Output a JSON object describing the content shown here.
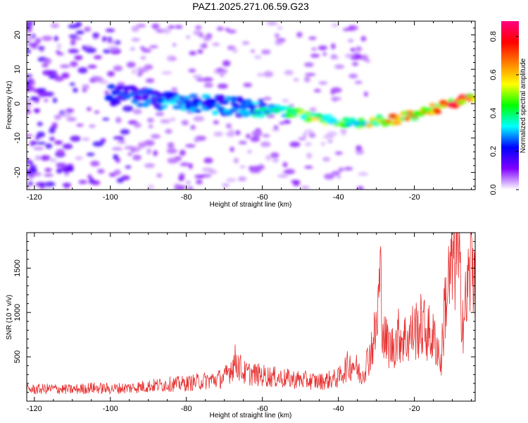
{
  "figure": {
    "title": "PAZ1.2025.271.06.59.G23"
  },
  "chart_data": [
    {
      "type": "heatmap",
      "panel": "spectrogram",
      "xlabel": "Height of straight line (km)",
      "ylabel": "Frequency (Hz)",
      "xlim": [
        -122,
        -4
      ],
      "ylim": [
        -25,
        24
      ],
      "xticks": [
        -120,
        -100,
        -80,
        -60,
        -40,
        -20
      ],
      "yticks": [
        -20,
        -10,
        0,
        10,
        20
      ],
      "colorbar": {
        "label": "Normalized spectral amplitude",
        "range": [
          0.0,
          0.88
        ],
        "ticks": [
          0.0,
          0.2,
          0.4,
          0.6,
          0.8
        ],
        "colors": [
          "#ffffff",
          "#8000ff",
          "#0000ff",
          "#00ffff",
          "#00ff00",
          "#ffff00",
          "#ff8000",
          "#ff0000",
          "#ff0080"
        ]
      },
      "ridge": {
        "description_points_height_km": [
          -95,
          -85,
          -75,
          -65,
          -55,
          -45,
          -35,
          -25,
          -15,
          -5
        ],
        "frequency_hz": [
          2.5,
          0.5,
          0.0,
          -1.0,
          -2.0,
          -4.5,
          -6.0,
          -4.5,
          -1.5,
          1.5
        ],
        "peak_amplitude": [
          0.25,
          0.3,
          0.3,
          0.28,
          0.45,
          0.55,
          0.5,
          0.7,
          0.75,
          0.85
        ]
      }
    },
    {
      "type": "line",
      "panel": "snr",
      "xlabel": "Height of straight line (km)",
      "ylabel": "SNR (10 * v/v)",
      "xlim": [
        -122,
        -4
      ],
      "ylim": [
        0,
        1900
      ],
      "xticks": [
        -120,
        -100,
        -80,
        -60,
        -40,
        -20
      ],
      "yticks": [
        500,
        1000,
        1500
      ],
      "series": [
        {
          "name": "SNR",
          "color": "#e83030",
          "x": [
            -122,
            -115,
            -110,
            -105,
            -100,
            -95,
            -90,
            -85,
            -80,
            -75,
            -70,
            -67,
            -65,
            -60,
            -55,
            -50,
            -45,
            -40,
            -38,
            -36,
            -34,
            -32,
            -30,
            -29,
            -28,
            -26,
            -24,
            -22,
            -20,
            -18,
            -16,
            -14,
            -13,
            -12,
            -11,
            -10,
            -9,
            -8,
            -7,
            -6,
            -5,
            -4
          ],
          "y": [
            130,
            140,
            130,
            150,
            140,
            150,
            170,
            190,
            200,
            230,
            260,
            460,
            320,
            290,
            260,
            240,
            220,
            260,
            380,
            430,
            280,
            500,
            800,
            1400,
            700,
            600,
            750,
            700,
            800,
            850,
            750,
            650,
            400,
            1100,
            1300,
            1500,
            1800,
            1300,
            900,
            1250,
            1600,
            1500
          ]
        }
      ]
    }
  ]
}
